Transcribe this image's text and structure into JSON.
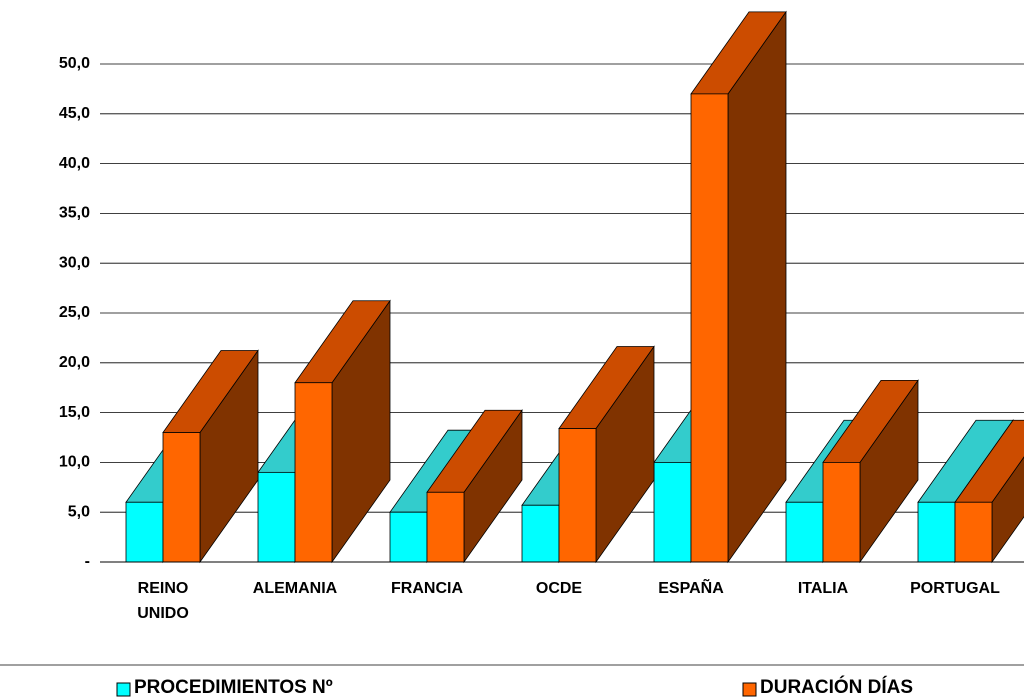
{
  "chart_data": {
    "type": "bar3d",
    "categories": [
      "REINO UNIDO",
      "ALEMANIA",
      "FRANCIA",
      "OCDE",
      "ESPAÑA",
      "ITALIA",
      "PORTUGAL"
    ],
    "series": [
      {
        "name": "PROCEDIMIENTOS Nº",
        "color": "#00ffff",
        "top_color": "#33cccc",
        "side_color": "#00a8a8",
        "values": [
          6,
          9,
          5,
          5.7,
          10,
          6,
          6
        ]
      },
      {
        "name": "DURACIÓN DÍAS",
        "color": "#ff6600",
        "top_color": "#cc4c00",
        "side_color": "#803300",
        "values": [
          13,
          18,
          7,
          13.4,
          47,
          10,
          6
        ]
      }
    ],
    "ylim": [
      0,
      50
    ],
    "yticks": [
      {
        "value": 0,
        "label": "-"
      },
      {
        "value": 5,
        "label": "5,0"
      },
      {
        "value": 10,
        "label": "10,0"
      },
      {
        "value": 15,
        "label": "15,0"
      },
      {
        "value": 20,
        "label": "20,0"
      },
      {
        "value": 25,
        "label": "25,0"
      },
      {
        "value": 30,
        "label": "30,0"
      },
      {
        "value": 35,
        "label": "35,0"
      },
      {
        "value": 40,
        "label": "40,0"
      },
      {
        "value": 45,
        "label": "45,0"
      },
      {
        "value": 50,
        "label": "50,0"
      }
    ],
    "grid": true
  }
}
